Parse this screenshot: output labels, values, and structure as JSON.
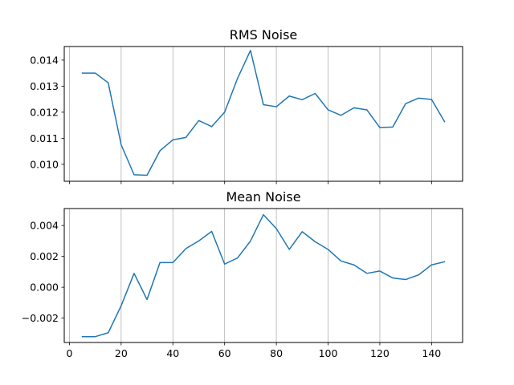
{
  "chart_data": [
    {
      "type": "line",
      "title": "RMS Noise",
      "xlabel": "",
      "ylabel": "",
      "xlim": [
        -2.0,
        152.0
      ],
      "ylim": [
        0.00935,
        0.01452
      ],
      "grid": "x-only",
      "x_ticks": [
        0,
        20,
        40,
        60,
        80,
        100,
        120,
        140
      ],
      "x_tick_labels_visible": false,
      "y_ticks": [
        0.01,
        0.011,
        0.012,
        0.013,
        0.014
      ],
      "y_tick_labels": [
        "0.010",
        "0.011",
        "0.012",
        "0.013",
        "0.014"
      ],
      "line_color": "#1f77b4",
      "x": [
        5,
        10,
        15,
        20,
        25,
        30,
        35,
        40,
        45,
        50,
        55,
        60,
        65,
        70,
        75,
        80,
        85,
        90,
        95,
        100,
        105,
        110,
        115,
        120,
        125,
        130,
        135,
        140,
        145
      ],
      "values": [
        0.0135,
        0.0135,
        0.01313,
        0.01075,
        0.0096,
        0.00958,
        0.01052,
        0.01094,
        0.01103,
        0.01168,
        0.01145,
        0.012,
        0.0133,
        0.01437,
        0.01229,
        0.01221,
        0.01262,
        0.01248,
        0.01272,
        0.01209,
        0.01188,
        0.01217,
        0.01209,
        0.01141,
        0.01143,
        0.01233,
        0.01254,
        0.01249,
        0.01164
      ]
    },
    {
      "type": "line",
      "title": "Mean Noise",
      "xlabel": "",
      "ylabel": "",
      "xlim": [
        -2.0,
        152.0
      ],
      "ylim": [
        -0.00358,
        0.0051
      ],
      "grid": "x-only",
      "x_ticks": [
        0,
        20,
        40,
        60,
        80,
        100,
        120,
        140
      ],
      "x_tick_labels": [
        "0",
        "20",
        "40",
        "60",
        "80",
        "100",
        "120",
        "140"
      ],
      "x_tick_labels_visible": true,
      "y_ticks": [
        -0.002,
        0.0,
        0.002,
        0.004
      ],
      "y_tick_labels": [
        "−0.002",
        "0.000",
        "0.002",
        "0.004"
      ],
      "line_color": "#1f77b4",
      "x": [
        5,
        10,
        15,
        20,
        25,
        30,
        35,
        40,
        45,
        50,
        55,
        60,
        65,
        70,
        75,
        80,
        85,
        90,
        95,
        100,
        105,
        110,
        115,
        120,
        125,
        130,
        135,
        140,
        145
      ],
      "values": [
        -0.0032,
        -0.0032,
        -0.00295,
        -0.0012,
        0.0009,
        -0.0008,
        0.0016,
        0.0016,
        0.0025,
        0.003,
        0.00362,
        0.0015,
        0.0019,
        0.003,
        0.0047,
        0.0038,
        0.00245,
        0.0036,
        0.00295,
        0.00245,
        0.0017,
        0.00145,
        0.0009,
        0.00105,
        0.0006,
        0.0005,
        0.0008,
        0.00145,
        0.00165
      ]
    }
  ]
}
